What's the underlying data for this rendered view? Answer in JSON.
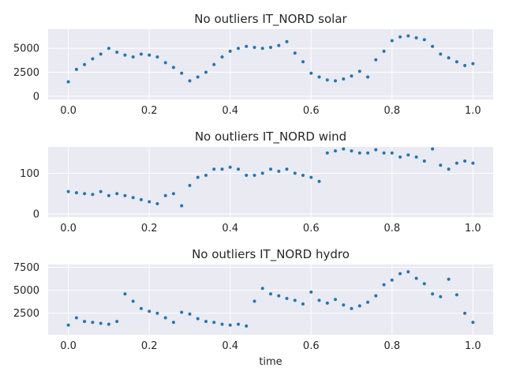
{
  "figure": {
    "xlabel": "time",
    "background": "#ffffff",
    "axes_face": "#eaeaf2",
    "grid_color": "#ffffff",
    "point_color": "#1f77b4"
  },
  "chart_data": [
    {
      "type": "scatter",
      "title": "No outliers IT_NORD solar",
      "xlabel": "",
      "ylabel": "",
      "xlim": [
        -0.05,
        1.05
      ],
      "ylim": [
        -350,
        7000
      ],
      "xticks": [
        0.0,
        0.2,
        0.4,
        0.6,
        0.8,
        1.0
      ],
      "xtick_labels": [
        "0.0",
        "0.2",
        "0.4",
        "0.6",
        "0.8",
        "1.0"
      ],
      "yticks": [
        0,
        2500,
        5000
      ],
      "ytick_labels": [
        "0",
        "2500",
        "5000"
      ],
      "grid": true,
      "series": [
        {
          "x": [
            0.0,
            0.02,
            0.04,
            0.06,
            0.08,
            0.1,
            0.12,
            0.14,
            0.16,
            0.18,
            0.2,
            0.22,
            0.24,
            0.26,
            0.28,
            0.3,
            0.32,
            0.34,
            0.36,
            0.38,
            0.4,
            0.42,
            0.44,
            0.46,
            0.48,
            0.5,
            0.52,
            0.54,
            0.56,
            0.58,
            0.6,
            0.62,
            0.64,
            0.66,
            0.68,
            0.7,
            0.72,
            0.74,
            0.76,
            0.78,
            0.8,
            0.82,
            0.84,
            0.86,
            0.88,
            0.9,
            0.92,
            0.94,
            0.96,
            0.98,
            1.0
          ],
          "y": [
            1500,
            2800,
            3300,
            3900,
            4400,
            5000,
            4600,
            4300,
            4100,
            4400,
            4300,
            4100,
            3500,
            3000,
            2400,
            1600,
            2000,
            2500,
            3300,
            4100,
            4700,
            5000,
            5200,
            5100,
            5000,
            5100,
            5300,
            5700,
            4500,
            3600,
            2400,
            2000,
            1700,
            1600,
            1800,
            2100,
            2600,
            2000,
            3800,
            4700,
            5800,
            6200,
            6300,
            6100,
            5900,
            5200,
            4400,
            4000,
            3600,
            3200,
            3400
          ]
        }
      ]
    },
    {
      "type": "scatter",
      "title": "No outliers IT_NORD wind",
      "xlabel": "",
      "ylabel": "",
      "xlim": [
        -0.05,
        1.05
      ],
      "ylim": [
        -8,
        165
      ],
      "xticks": [
        0.0,
        0.2,
        0.4,
        0.6,
        0.8,
        1.0
      ],
      "xtick_labels": [
        "0.0",
        "0.2",
        "0.4",
        "0.6",
        "0.8",
        "1.0"
      ],
      "yticks": [
        0,
        100
      ],
      "ytick_labels": [
        "0",
        "100"
      ],
      "grid": true,
      "series": [
        {
          "x": [
            0.0,
            0.02,
            0.04,
            0.06,
            0.08,
            0.1,
            0.12,
            0.14,
            0.16,
            0.18,
            0.2,
            0.22,
            0.24,
            0.26,
            0.28,
            0.3,
            0.32,
            0.34,
            0.36,
            0.38,
            0.4,
            0.42,
            0.44,
            0.46,
            0.48,
            0.5,
            0.52,
            0.54,
            0.56,
            0.58,
            0.6,
            0.62,
            0.64,
            0.66,
            0.68,
            0.7,
            0.72,
            0.74,
            0.76,
            0.78,
            0.8,
            0.82,
            0.84,
            0.86,
            0.88,
            0.9,
            0.92,
            0.94,
            0.96,
            0.98,
            1.0
          ],
          "y": [
            55,
            52,
            50,
            48,
            55,
            45,
            50,
            45,
            40,
            35,
            30,
            25,
            45,
            50,
            20,
            70,
            90,
            95,
            110,
            110,
            115,
            110,
            95,
            95,
            100,
            110,
            105,
            110,
            100,
            95,
            90,
            80,
            150,
            155,
            160,
            155,
            150,
            150,
            158,
            150,
            150,
            140,
            145,
            140,
            130,
            160,
            120,
            110,
            125,
            130,
            125
          ]
        }
      ]
    },
    {
      "type": "scatter",
      "title": "No outliers IT_NORD hydro",
      "xlabel": "time",
      "ylabel": "",
      "xlim": [
        -0.05,
        1.05
      ],
      "ylim": [
        150,
        7800
      ],
      "xticks": [
        0.0,
        0.2,
        0.4,
        0.6,
        0.8,
        1.0
      ],
      "xtick_labels": [
        "0.0",
        "0.2",
        "0.4",
        "0.6",
        "0.8",
        "1.0"
      ],
      "yticks": [
        2500,
        5000,
        7500
      ],
      "ytick_labels": [
        "2500",
        "5000",
        "7500"
      ],
      "grid": true,
      "series": [
        {
          "x": [
            0.0,
            0.02,
            0.04,
            0.06,
            0.08,
            0.1,
            0.12,
            0.14,
            0.16,
            0.18,
            0.2,
            0.22,
            0.24,
            0.26,
            0.28,
            0.3,
            0.32,
            0.34,
            0.36,
            0.38,
            0.4,
            0.42,
            0.44,
            0.46,
            0.48,
            0.5,
            0.52,
            0.54,
            0.56,
            0.58,
            0.6,
            0.62,
            0.64,
            0.66,
            0.68,
            0.7,
            0.72,
            0.74,
            0.76,
            0.78,
            0.8,
            0.82,
            0.84,
            0.86,
            0.88,
            0.9,
            0.92,
            0.94,
            0.96,
            0.98,
            1.0
          ],
          "y": [
            1200,
            2000,
            1600,
            1500,
            1400,
            1300,
            1600,
            4600,
            3800,
            3000,
            2700,
            2500,
            2000,
            1500,
            2600,
            2400,
            1900,
            1600,
            1500,
            1300,
            1200,
            1300,
            1100,
            3800,
            5200,
            4600,
            4400,
            4100,
            3900,
            3500,
            4800,
            3900,
            3600,
            4000,
            3400,
            3000,
            3300,
            3700,
            4400,
            5600,
            6100,
            6800,
            7000,
            6300,
            5700,
            4600,
            4300,
            6200,
            4500,
            2500,
            1500
          ]
        }
      ]
    }
  ]
}
